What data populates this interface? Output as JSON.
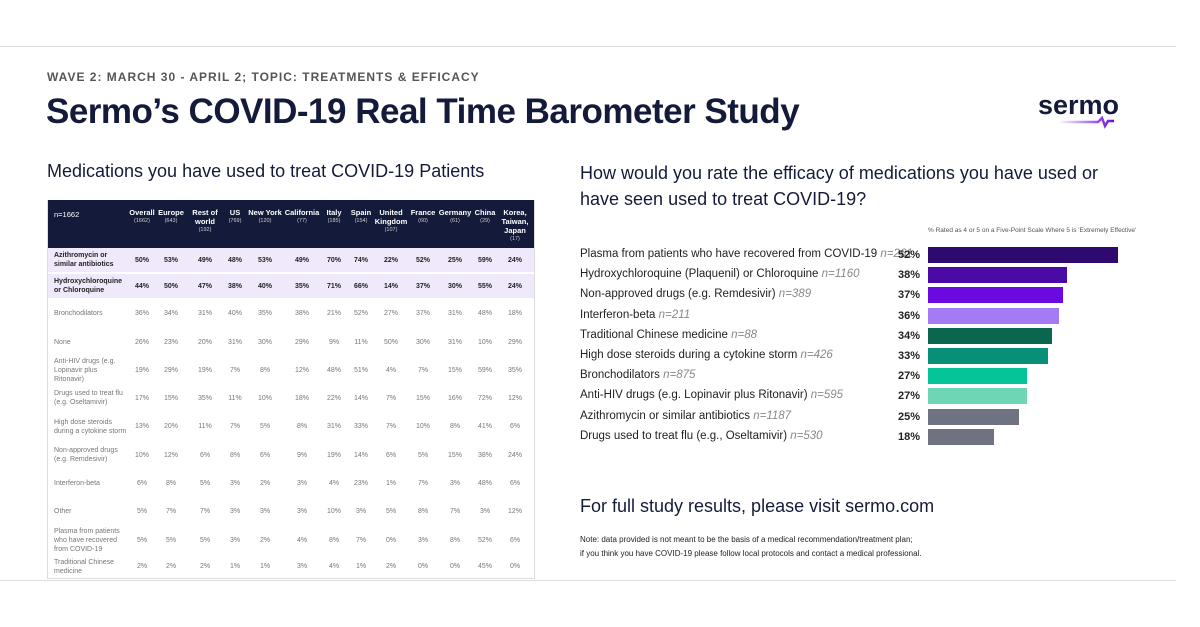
{
  "header": {
    "wave": "WAVE 2: MARCH 30 - APRIL 2; TOPIC: TREATMENTS & EFFICACY",
    "title": "Sermo’s COVID-19 Real Time Barometer Study",
    "logo": "sermo"
  },
  "left": {
    "heading": "Medications you have used to treat COVID-19 Patients",
    "table": {
      "n_label": "n=1662",
      "columns": [
        {
          "name": "Overall",
          "n": "(1662)"
        },
        {
          "name": "Europe",
          "n": "(643)"
        },
        {
          "name": "Rest of world",
          "n": "(192)"
        },
        {
          "name": "US",
          "n": "(769)"
        },
        {
          "name": "New York",
          "n": "(120)"
        },
        {
          "name": "California",
          "n": "(77)"
        },
        {
          "name": "Italy",
          "n": "(185)"
        },
        {
          "name": "Spain",
          "n": "(154)"
        },
        {
          "name": "United Kingdom",
          "n": "(107)"
        },
        {
          "name": "France",
          "n": "(60)"
        },
        {
          "name": "Germany",
          "n": "(61)"
        },
        {
          "name": "China",
          "n": "(29)"
        },
        {
          "name": "Korea, Taiwan, Japan",
          "n": "(17)"
        }
      ],
      "rows": [
        {
          "label": "Azithromycin or similar antibiotics",
          "highlight": true,
          "values": [
            "50%",
            "53%",
            "49%",
            "48%",
            "53%",
            "49%",
            "70%",
            "74%",
            "22%",
            "52%",
            "25%",
            "59%",
            "24%"
          ]
        },
        {
          "label": "Hydroxychloroquine or Chloroquine",
          "highlight": true,
          "values": [
            "44%",
            "50%",
            "47%",
            "38%",
            "40%",
            "35%",
            "71%",
            "66%",
            "14%",
            "37%",
            "30%",
            "55%",
            "24%"
          ]
        },
        {
          "label": "Bronchodilators",
          "values": [
            "36%",
            "34%",
            "31%",
            "40%",
            "35%",
            "38%",
            "21%",
            "52%",
            "27%",
            "37%",
            "31%",
            "48%",
            "18%"
          ]
        },
        {
          "label": "None",
          "values": [
            "26%",
            "23%",
            "20%",
            "31%",
            "30%",
            "29%",
            "9%",
            "11%",
            "50%",
            "30%",
            "31%",
            "10%",
            "29%"
          ]
        },
        {
          "label": "Anti-HIV drugs (e.g. Lopinavir plus Ritonavir)",
          "values": [
            "19%",
            "29%",
            "19%",
            "7%",
            "8%",
            "12%",
            "48%",
            "51%",
            "4%",
            "7%",
            "15%",
            "59%",
            "35%"
          ]
        },
        {
          "label": "Drugs used to treat flu (e.g. Oseltamivir)",
          "values": [
            "17%",
            "15%",
            "35%",
            "11%",
            "10%",
            "18%",
            "22%",
            "14%",
            "7%",
            "15%",
            "16%",
            "72%",
            "12%"
          ]
        },
        {
          "label": "High dose steroids during a cytokine storm",
          "values": [
            "13%",
            "20%",
            "11%",
            "7%",
            "5%",
            "8%",
            "31%",
            "33%",
            "7%",
            "10%",
            "8%",
            "41%",
            "6%"
          ]
        },
        {
          "label": "Non-approved drugs (e.g. Remdesivir)",
          "values": [
            "10%",
            "12%",
            "6%",
            "8%",
            "6%",
            "9%",
            "19%",
            "14%",
            "6%",
            "5%",
            "15%",
            "38%",
            "24%"
          ]
        },
        {
          "label": "Interferon-beta",
          "values": [
            "6%",
            "8%",
            "5%",
            "3%",
            "2%",
            "3%",
            "4%",
            "23%",
            "1%",
            "7%",
            "3%",
            "48%",
            "6%"
          ]
        },
        {
          "label": "Other",
          "values": [
            "5%",
            "7%",
            "7%",
            "3%",
            "3%",
            "3%",
            "10%",
            "3%",
            "5%",
            "8%",
            "7%",
            "3%",
            "12%"
          ]
        },
        {
          "label": "Plasma from patients who have recovered from COVID-19",
          "values": [
            "5%",
            "5%",
            "5%",
            "3%",
            "2%",
            "4%",
            "8%",
            "7%",
            "0%",
            "3%",
            "8%",
            "52%",
            "6%"
          ]
        },
        {
          "label": "Traditional Chinese medicine",
          "values": [
            "2%",
            "2%",
            "2%",
            "1%",
            "1%",
            "3%",
            "4%",
            "1%",
            "2%",
            "0%",
            "0%",
            "45%",
            "0%"
          ]
        }
      ]
    }
  },
  "chart_data": {
    "type": "bar",
    "orientation": "horizontal",
    "title": "How would you rate the efficacy of medications you have used or have seen used to treat COVID-19?",
    "subtitle": "% Rated as 4 or 5 on a Five-Point Scale Where 5 is 'Extremely Effective'",
    "categories": [
      "Plasma from patients who have recovered from COVID-19",
      "Hydroxychloroquine (Plaquenil) or Chloroquine",
      "Non-approved drugs (e.g. Remdesivir)",
      "Interferon-beta",
      "Traditional Chinese medicine",
      "High dose steroids during a cytokine storm",
      "Bronchodilators",
      "Anti-HIV drugs (e.g. Lopinavir plus Ritonavir)",
      "Azithromycin or similar antibiotics",
      "Drugs used to treat flu (e.g., Oseltamivir)"
    ],
    "n": [
      "n=261",
      "n=1160",
      "n=389",
      "n=211",
      "n=88",
      "n=426",
      "n=875",
      "n=595",
      "n=1187",
      "n=530"
    ],
    "values": [
      52,
      38,
      37,
      36,
      34,
      33,
      27,
      27,
      25,
      18
    ],
    "value_labels": [
      "52%",
      "38%",
      "37%",
      "36%",
      "34%",
      "33%",
      "27%",
      "27%",
      "25%",
      "18%"
    ],
    "colors": [
      "#2e0a6e",
      "#4b0aa6",
      "#6a0ae0",
      "#a57af5",
      "#0b6650",
      "#079077",
      "#05c498",
      "#6fd6b5",
      "#6f7280",
      "#6f7280"
    ]
  },
  "footer": {
    "cta": "For full study results, please visit sermo.com",
    "note_line1": "Note: data provided is not meant to be the basis of a medical recommendation/treatment plan;",
    "note_line2": "if you think you have COVID-19 please follow local protocols and contact a medical professional."
  }
}
